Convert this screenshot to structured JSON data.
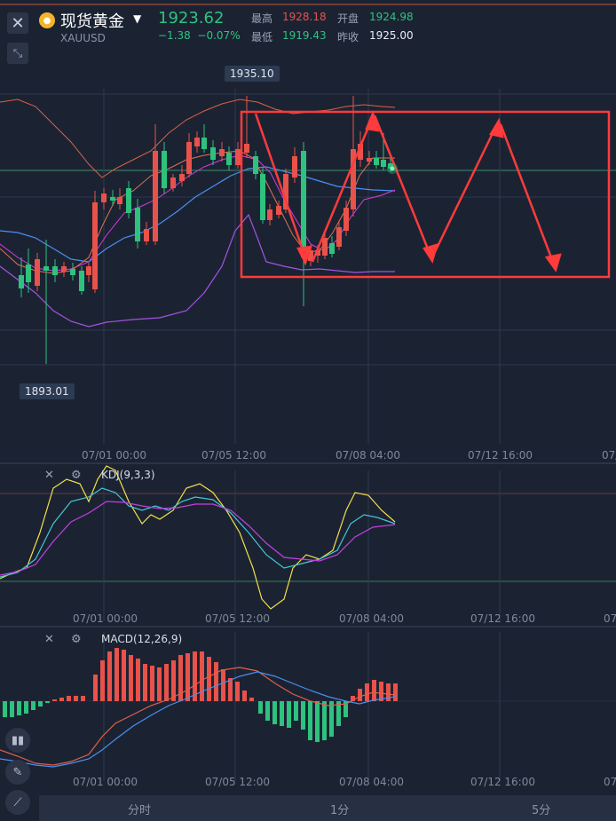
{
  "header": {
    "title": "现货黄金",
    "symbol": "XAUUSD",
    "price": "1923.62",
    "change": "−1.38",
    "change_pct": "−0.07%",
    "stats": {
      "high_label": "最高",
      "high": "1928.18",
      "open_label": "开盘",
      "open": "1924.98",
      "low_label": "最低",
      "low": "1919.43",
      "prev_close_label": "昨收",
      "prev_close": "1925.00"
    }
  },
  "main_chart": {
    "max_tag": "1935.10",
    "min_tag": "1893.01",
    "x_labels": [
      "07/01 00:00",
      "07/05 12:00",
      "07/08 04:00",
      "07/12 16:00",
      "07/"
    ]
  },
  "kdj": {
    "label": "KDJ(9,3,3)",
    "x_labels": [
      "07/01 00:00",
      "07/05 12:00",
      "07/08 04:00",
      "07/12 16:00",
      "07/"
    ]
  },
  "macd": {
    "label": "MACD(12,26,9)",
    "x_labels": [
      "07/01 00:00",
      "07/05 12:00",
      "07/08 04:00",
      "07/12 16:00",
      "07/"
    ]
  },
  "tabs": [
    {
      "label": "分时"
    },
    {
      "label": "1分"
    },
    {
      "label": "5分"
    }
  ],
  "colors": {
    "up": "#e8524a",
    "down": "#2ec27e",
    "annotation": "#ff3b3b"
  },
  "icons": {
    "close": "close-icon",
    "expand": "expand-icon",
    "settings": "gear-icon"
  }
}
